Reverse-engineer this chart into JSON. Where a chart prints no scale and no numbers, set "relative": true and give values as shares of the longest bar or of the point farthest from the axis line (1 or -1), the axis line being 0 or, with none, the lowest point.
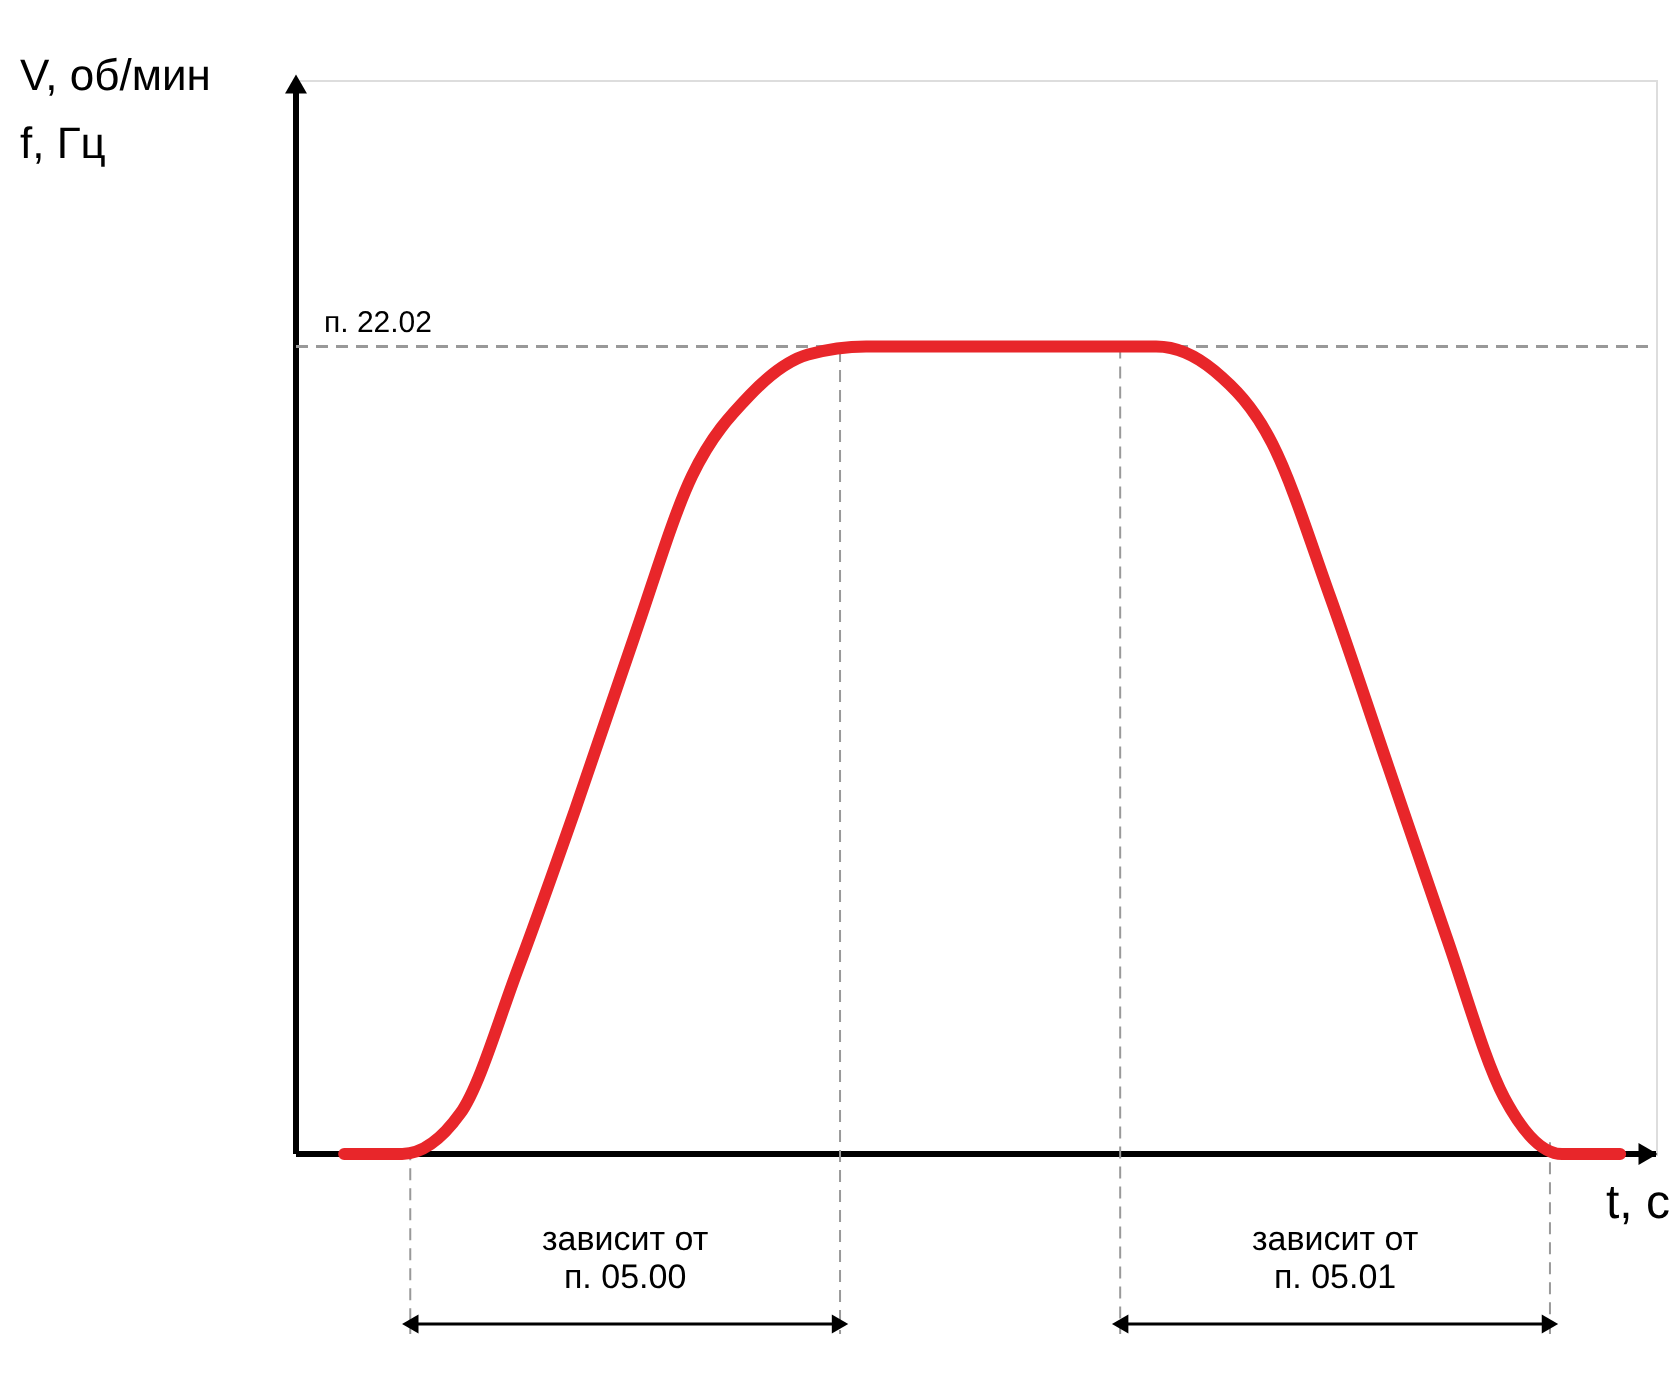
{
  "chart_data": {
    "type": "line",
    "relative": true,
    "ylabel": "V, об/мин\nf, Гц",
    "xlabel": "t, c",
    "categories": [
      null,
      null,
      null,
      null,
      null,
      null,
      null,
      null,
      null,
      null,
      null,
      null,
      null,
      null,
      null,
      null,
      null,
      null,
      null,
      null,
      null,
      null,
      null
    ],
    "values": [
      0,
      0,
      0.05,
      0.23,
      0.43,
      0.64,
      0.84,
      0.94,
      0.99,
      1,
      1,
      1,
      1,
      1,
      1,
      0.97,
      0.88,
      0.69,
      0.48,
      0.27,
      0.07,
      0,
      0
    ],
    "color": "#e8262a",
    "line_style": "solid",
    "marker": "none",
    "annotations": [
      "зависит от\nп. 05.00",
      "зависит от\nп. 05.01"
    ],
    "ref_lines": [
      {
        "axis": "y",
        "value": 1,
        "label": "п. 22.02",
        "color": "#999999",
        "line_style": "dashed"
      }
    ]
  }
}
